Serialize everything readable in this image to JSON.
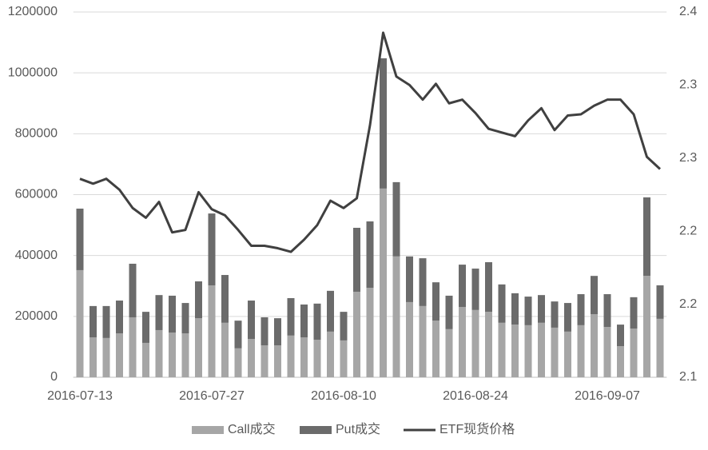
{
  "chart_data": {
    "type": "bar-line",
    "categories": [
      "2016-07-13",
      null,
      null,
      null,
      null,
      null,
      null,
      null,
      null,
      null,
      "2016-07-27",
      null,
      null,
      null,
      null,
      null,
      null,
      null,
      null,
      null,
      "2016-08-10",
      null,
      null,
      null,
      null,
      null,
      null,
      null,
      null,
      null,
      "2016-08-24",
      null,
      null,
      null,
      null,
      null,
      null,
      null,
      null,
      null,
      "2016-09-07",
      null,
      null,
      null,
      null
    ],
    "series": [
      {
        "name": "Call成交",
        "type": "bar",
        "color": "#a6a6a6",
        "values": [
          352000,
          131000,
          129000,
          144000,
          197000,
          113000,
          155000,
          147000,
          144000,
          194000,
          302000,
          179000,
          95000,
          126000,
          105000,
          105000,
          137000,
          131000,
          123000,
          150000,
          121000,
          281000,
          294000,
          620000,
          397000,
          247000,
          234000,
          186000,
          158000,
          231000,
          221000,
          215000,
          179000,
          173000,
          171000,
          179000,
          163000,
          150000,
          171000,
          207000,
          165000,
          102000,
          160000,
          333000,
          192000
        ]
      },
      {
        "name": "Put成交",
        "type": "bar",
        "color": "#6b6b6b",
        "values": [
          202000,
          103000,
          105000,
          108000,
          176000,
          102000,
          115000,
          121000,
          100000,
          121000,
          236000,
          157000,
          91000,
          126000,
          92000,
          89000,
          123000,
          108000,
          119000,
          134000,
          94000,
          210000,
          218000,
          428000,
          244000,
          150000,
          157000,
          126000,
          110000,
          139000,
          136000,
          163000,
          126000,
          103000,
          94000,
          91000,
          86000,
          94000,
          102000,
          126000,
          108000,
          71000,
          103000,
          258000,
          110000
        ]
      },
      {
        "name": "ETF现货价格",
        "type": "line",
        "axis": "y2",
        "color": "#404040",
        "values": [
          2.263,
          2.259,
          2.263,
          2.254,
          2.239,
          2.231,
          2.244,
          2.219,
          2.221,
          2.252,
          2.238,
          2.233,
          2.221,
          2.208,
          2.208,
          2.206,
          2.203,
          2.213,
          2.225,
          2.245,
          2.239,
          2.247,
          2.307,
          2.383,
          2.347,
          2.34,
          2.328,
          2.341,
          2.325,
          2.328,
          2.317,
          2.304,
          2.301,
          2.298,
          2.311,
          2.321,
          2.303,
          2.315,
          2.316,
          2.323,
          2.328,
          2.328,
          2.316,
          2.281,
          2.271
        ]
      }
    ],
    "ylim": [
      0,
      1200000
    ],
    "yticks": [
      0,
      200000,
      400000,
      600000,
      800000,
      1000000,
      1200000
    ],
    "y2lim": [
      2.1,
      2.4
    ],
    "y2ticks": [
      {
        "value": 2.1,
        "label": "2.1"
      },
      {
        "value": 2.16,
        "label": "2.2"
      },
      {
        "value": 2.22,
        "label": "2.2"
      },
      {
        "value": 2.28,
        "label": "2.3"
      },
      {
        "value": 2.34,
        "label": "2.3"
      },
      {
        "value": 2.4,
        "label": "2.4"
      }
    ],
    "grid": true,
    "stacked": true,
    "legend": "bottom"
  }
}
